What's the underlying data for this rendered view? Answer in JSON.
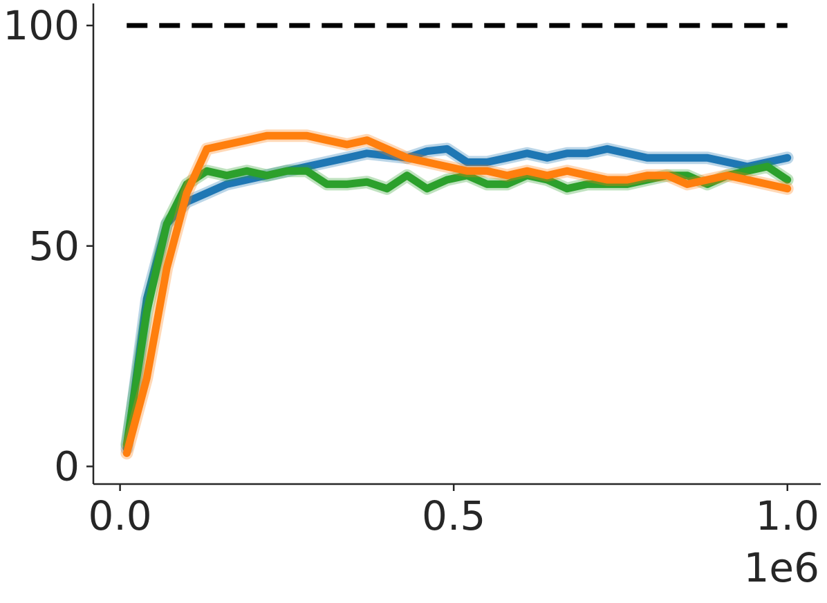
{
  "chart_data": {
    "type": "line",
    "x": [
      0.01,
      0.04,
      0.07,
      0.1,
      0.13,
      0.16,
      0.19,
      0.22,
      0.25,
      0.28,
      0.31,
      0.34,
      0.37,
      0.4,
      0.43,
      0.46,
      0.49,
      0.52,
      0.55,
      0.58,
      0.61,
      0.64,
      0.67,
      0.7,
      0.73,
      0.76,
      0.79,
      0.82,
      0.85,
      0.88,
      0.91,
      0.94,
      0.97,
      1.0
    ],
    "series": [
      {
        "color": "#1f77b4",
        "values": [
          4,
          38,
          55,
          60,
          62,
          64,
          65,
          66,
          67,
          68,
          69,
          70,
          71,
          70.5,
          70,
          71.5,
          72,
          69,
          69,
          70,
          71,
          70,
          71,
          71,
          72,
          71,
          70,
          70,
          70,
          70,
          69,
          68,
          69,
          70
        ]
      },
      {
        "color": "#2ca02c",
        "values": [
          5,
          35,
          55,
          64,
          67,
          66,
          67,
          66,
          67,
          67,
          64,
          64,
          64.5,
          63,
          66,
          63,
          65,
          66,
          64,
          64,
          66,
          65,
          63,
          64,
          64,
          64,
          65,
          66,
          66,
          64,
          66,
          67,
          68,
          65
        ]
      },
      {
        "color": "#ff7f0e",
        "values": [
          3,
          20,
          45,
          62,
          72,
          73,
          74,
          75,
          75,
          75,
          74,
          73,
          74,
          72,
          70,
          69,
          68,
          67,
          67,
          66,
          67,
          66,
          67,
          66,
          65,
          65,
          66,
          66,
          64,
          65,
          66,
          65,
          64,
          63
        ]
      }
    ],
    "hline": {
      "y": 100,
      "x": [
        0.01,
        1.0
      ],
      "color": "#000000",
      "dashed": true
    },
    "xlim": [
      -0.04,
      1.05
    ],
    "ylim": [
      -4,
      105
    ],
    "xticks": [
      {
        "value": 0,
        "label": "0.0"
      },
      {
        "value": 0.5,
        "label": "0.5"
      },
      {
        "value": 1.0,
        "label": "1.0"
      }
    ],
    "yticks": [
      0,
      50,
      100
    ],
    "x_offset_label": "1e6",
    "grid": false
  }
}
